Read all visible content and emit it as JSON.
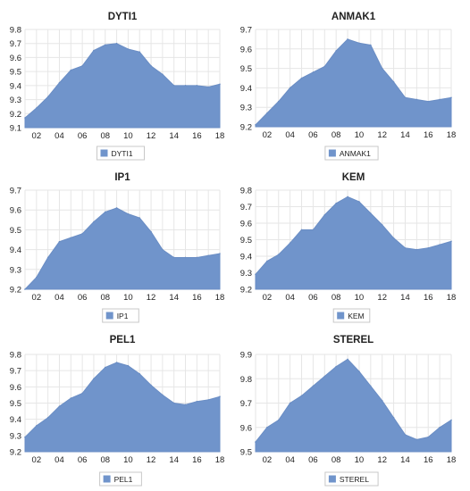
{
  "colors": {
    "fill": "#7094cb",
    "stroke": "#6a8dc4",
    "grid": "#e6e6e6",
    "text": "#222222",
    "legend_border": "#c8c8c8"
  },
  "x_ticks": [
    "02",
    "04",
    "06",
    "08",
    "10",
    "12",
    "14",
    "16",
    "18"
  ],
  "chart_data": [
    {
      "type": "area",
      "title": "DYTI1",
      "legend": "DYTI1",
      "legend_position": "bottom",
      "grid": true,
      "x": [
        1,
        2,
        3,
        4,
        5,
        6,
        7,
        8,
        9,
        10,
        11,
        12,
        13,
        14,
        15,
        16,
        17,
        18
      ],
      "values": [
        9.17,
        9.24,
        9.32,
        9.42,
        9.51,
        9.54,
        9.65,
        9.69,
        9.7,
        9.66,
        9.64,
        9.54,
        9.48,
        9.4,
        9.4,
        9.4,
        9.39,
        9.41
      ],
      "ylim": [
        9.1,
        9.8
      ],
      "yticks": [
        "9.1",
        "9.2",
        "9.3",
        "9.4",
        "9.5",
        "9.6",
        "9.7",
        "9.8"
      ]
    },
    {
      "type": "area",
      "title": "ANMAK1",
      "legend": "ANMAK1",
      "legend_position": "bottom",
      "grid": true,
      "x": [
        1,
        2,
        3,
        4,
        5,
        6,
        7,
        8,
        9,
        10,
        11,
        12,
        13,
        14,
        15,
        16,
        17,
        18
      ],
      "values": [
        9.21,
        9.27,
        9.33,
        9.4,
        9.45,
        9.48,
        9.51,
        9.59,
        9.65,
        9.63,
        9.62,
        9.5,
        9.43,
        9.35,
        9.34,
        9.33,
        9.34,
        9.35
      ],
      "ylim": [
        9.2,
        9.7
      ],
      "yticks": [
        "9.2",
        "9.3",
        "9.4",
        "9.5",
        "9.6",
        "9.7"
      ]
    },
    {
      "type": "area",
      "title": "IP1",
      "legend": "IP1",
      "legend_position": "bottom",
      "grid": true,
      "x": [
        1,
        2,
        3,
        4,
        5,
        6,
        7,
        8,
        9,
        10,
        11,
        12,
        13,
        14,
        15,
        16,
        17,
        18
      ],
      "values": [
        9.2,
        9.26,
        9.36,
        9.44,
        9.46,
        9.48,
        9.54,
        9.59,
        9.61,
        9.58,
        9.56,
        9.49,
        9.4,
        9.36,
        9.36,
        9.36,
        9.37,
        9.38
      ],
      "ylim": [
        9.2,
        9.7
      ],
      "yticks": [
        "9.2",
        "9.3",
        "9.4",
        "9.5",
        "9.6",
        "9.7"
      ]
    },
    {
      "type": "area",
      "title": "KEM",
      "legend": "KEM",
      "legend_position": "bottom",
      "grid": true,
      "x": [
        1,
        2,
        3,
        4,
        5,
        6,
        7,
        8,
        9,
        10,
        11,
        12,
        13,
        14,
        15,
        16,
        17,
        18
      ],
      "values": [
        9.29,
        9.37,
        9.41,
        9.48,
        9.56,
        9.56,
        9.65,
        9.72,
        9.76,
        9.73,
        9.66,
        9.59,
        9.51,
        9.45,
        9.44,
        9.45,
        9.47,
        9.49
      ],
      "ylim": [
        9.2,
        9.8
      ],
      "yticks": [
        "9.2",
        "9.3",
        "9.4",
        "9.5",
        "9.6",
        "9.7",
        "9.8"
      ]
    },
    {
      "type": "area",
      "title": "PEL1",
      "legend": "PEL1",
      "legend_position": "bottom",
      "grid": true,
      "x": [
        1,
        2,
        3,
        4,
        5,
        6,
        7,
        8,
        9,
        10,
        11,
        12,
        13,
        14,
        15,
        16,
        17,
        18
      ],
      "values": [
        9.29,
        9.36,
        9.41,
        9.48,
        9.53,
        9.56,
        9.65,
        9.72,
        9.75,
        9.73,
        9.68,
        9.61,
        9.55,
        9.5,
        9.49,
        9.51,
        9.52,
        9.54
      ],
      "ylim": [
        9.2,
        9.8
      ],
      "yticks": [
        "9.2",
        "9.3",
        "9.4",
        "9.5",
        "9.6",
        "9.7",
        "9.8"
      ]
    },
    {
      "type": "area",
      "title": "STEREL",
      "legend": "STEREL",
      "legend_position": "bottom",
      "grid": true,
      "x": [
        1,
        2,
        3,
        4,
        5,
        6,
        7,
        8,
        9,
        10,
        11,
        12,
        13,
        14,
        15,
        16,
        17,
        18
      ],
      "values": [
        9.54,
        9.6,
        9.63,
        9.7,
        9.73,
        9.77,
        9.81,
        9.85,
        9.88,
        9.83,
        9.77,
        9.71,
        9.64,
        9.57,
        9.55,
        9.56,
        9.6,
        9.63
      ],
      "ylim": [
        9.5,
        9.9
      ],
      "yticks": [
        "9.5",
        "9.6",
        "9.7",
        "9.8",
        "9.9"
      ]
    }
  ]
}
